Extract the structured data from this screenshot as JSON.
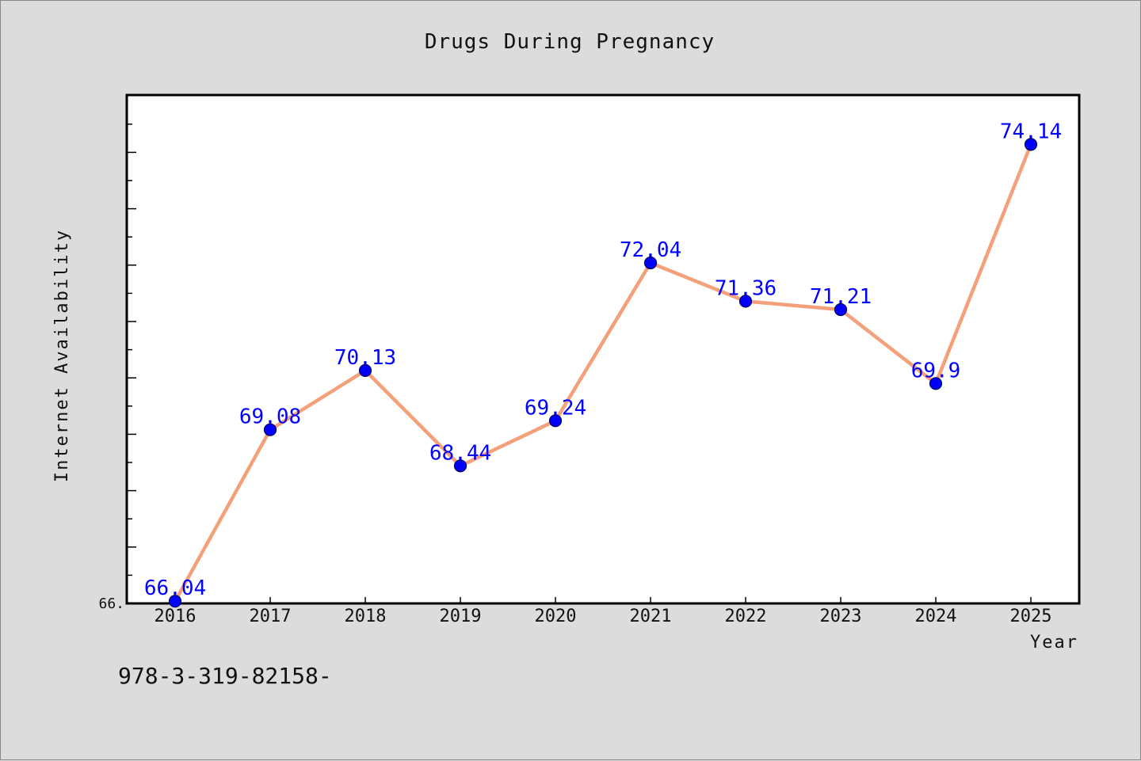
{
  "chart_data": {
    "type": "line",
    "title": "Drugs During Pregnancy",
    "xlabel": "Year",
    "ylabel": "Internet Availability",
    "categories": [
      "2016",
      "2017",
      "2018",
      "2019",
      "2020",
      "2021",
      "2022",
      "2023",
      "2024",
      "2025"
    ],
    "series": [
      {
        "values": [
          66.04,
          69.08,
          70.13,
          68.44,
          69.24,
          72.04,
          71.36,
          71.21,
          69.9,
          74.14
        ],
        "data_labels": [
          "66.04",
          "69.08",
          "70.13",
          "68.44",
          "69.24",
          "72.04",
          "71.36",
          "71.21",
          "69.9",
          "74.14"
        ],
        "line_color": "#f4a07a",
        "marker_color": "#0000ff"
      }
    ],
    "y_tick_label": "66.",
    "ylim": [
      66.0,
      75.0
    ],
    "grid": false,
    "legend": "none"
  },
  "footnote": "978-3-319-82158-"
}
